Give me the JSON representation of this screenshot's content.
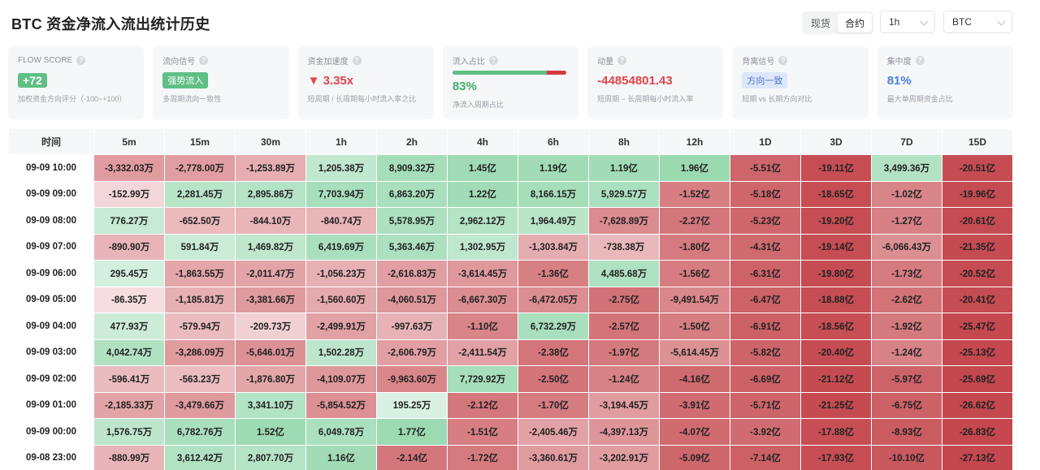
{
  "page": {
    "title": "BTC 资金净流入流出统计历史"
  },
  "controls": {
    "market_tabs": [
      "现货",
      "合约"
    ],
    "market_active": 1,
    "interval": "1h",
    "symbol": "BTC"
  },
  "cards": [
    {
      "label": "FLOW SCORE",
      "value": "+72",
      "sub": "加权资金方向评分（-100~+100）"
    },
    {
      "label": "流向信号",
      "value": "强势流入",
      "sub": "多周期流向一致性"
    },
    {
      "label": "资金加速度",
      "value": "▼ 3.35x",
      "sub": "短周期 / 长周期每小时流入率之比"
    },
    {
      "label": "流入占比",
      "value": "83%",
      "inflow_fraction": 0.83,
      "sub": "净流入周期占比"
    },
    {
      "label": "动量",
      "value": "-44854801.43",
      "sub": "短周期 − 长周期每小时流入率"
    },
    {
      "label": "背离信号",
      "value": "方向一致",
      "sub": "短期 vs 长期方向对比"
    },
    {
      "label": "集中度",
      "value": "81%",
      "sub": "最大单周期资金占比"
    }
  ],
  "table": {
    "columns": [
      "时间",
      "5m",
      "15m",
      "30m",
      "1h",
      "2h",
      "4h",
      "6h",
      "8h",
      "12h",
      "1D",
      "3D",
      "7D",
      "15D"
    ],
    "rows": [
      {
        "time": "09-09 10:00",
        "cells": [
          "-3,332.03万",
          "-2,778.00万",
          "-1,253.89万",
          "1,205.38万",
          "8,909.32万",
          "1.45亿",
          "1.19亿",
          "1.19亿",
          "1.96亿",
          "-5.51亿",
          "-19.11亿",
          "3,499.36万",
          "-20.51亿"
        ]
      },
      {
        "time": "09-09 09:00",
        "cells": [
          "-152.99万",
          "2,281.45万",
          "2,895.86万",
          "7,703.94万",
          "6,863.20万",
          "1.22亿",
          "8,166.15万",
          "5,929.57万",
          "-1.52亿",
          "-5.18亿",
          "-18.65亿",
          "-1.02亿",
          "-19.96亿"
        ]
      },
      {
        "time": "09-09 08:00",
        "cells": [
          "776.27万",
          "-652.50万",
          "-844.10万",
          "-840.74万",
          "5,578.95万",
          "2,962.12万",
          "1,964.49万",
          "-7,628.89万",
          "-2.27亿",
          "-5.23亿",
          "-19.20亿",
          "-1.27亿",
          "-20.61亿"
        ]
      },
      {
        "time": "09-09 07:00",
        "cells": [
          "-890.90万",
          "591.84万",
          "1,469.82万",
          "6,419.69万",
          "5,363.46万",
          "1,302.95万",
          "-1,303.84万",
          "-738.38万",
          "-1.80亿",
          "-4.31亿",
          "-19.14亿",
          "-6,066.43万",
          "-21.35亿"
        ]
      },
      {
        "time": "09-09 06:00",
        "cells": [
          "295.45万",
          "-1,863.55万",
          "-2,011.47万",
          "-1,056.23万",
          "-2,616.83万",
          "-3,614.45万",
          "-1.36亿",
          "4,485.68万",
          "-1.56亿",
          "-6.31亿",
          "-19.80亿",
          "-1.73亿",
          "-20.52亿"
        ]
      },
      {
        "time": "09-09 05:00",
        "cells": [
          "-86.35万",
          "-1,185.81万",
          "-3,381.66万",
          "-1,560.60万",
          "-4,060.51万",
          "-6,667.30万",
          "-6,472.05万",
          "-2.75亿",
          "-9,491.54万",
          "-6.47亿",
          "-18.88亿",
          "-2.62亿",
          "-20.41亿"
        ]
      },
      {
        "time": "09-09 04:00",
        "cells": [
          "477.93万",
          "-579.94万",
          "-209.73万",
          "-2,499.91万",
          "-997.63万",
          "-1.10亿",
          "6,732.29万",
          "-2.57亿",
          "-1.50亿",
          "-6.91亿",
          "-18.56亿",
          "-1.92亿",
          "-25.47亿"
        ]
      },
      {
        "time": "09-09 03:00",
        "cells": [
          "4,042.74万",
          "-3,286.09万",
          "-5,646.01万",
          "1,502.28万",
          "-2,606.79万",
          "-2,411.54万",
          "-2.38亿",
          "-1.97亿",
          "-5,614.45万",
          "-5.82亿",
          "-20.40亿",
          "-1.24亿",
          "-25.13亿"
        ]
      },
      {
        "time": "09-09 02:00",
        "cells": [
          "-596.41万",
          "-563.23万",
          "-1,876.80万",
          "-4,109.07万",
          "-9,963.60万",
          "7,729.92万",
          "-2.50亿",
          "-1.24亿",
          "-4.16亿",
          "-6.69亿",
          "-21.12亿",
          "-5.97亿",
          "-25.69亿"
        ]
      },
      {
        "time": "09-09 01:00",
        "cells": [
          "-2,185.33万",
          "-3,479.66万",
          "3,341.10万",
          "-5,854.52万",
          "195.25万",
          "-2.12亿",
          "-1.70亿",
          "-3,194.45万",
          "-3.91亿",
          "-5.71亿",
          "-21.25亿",
          "-6.75亿",
          "-26.62亿"
        ]
      },
      {
        "time": "09-09 00:00",
        "cells": [
          "1,576.75万",
          "6,782.76万",
          "1.52亿",
          "6,049.78万",
          "1.77亿",
          "-1.51亿",
          "-2,405.46万",
          "-4,397.13万",
          "-4.07亿",
          "-3.92亿",
          "-17.88亿",
          "-8.93亿",
          "-26.83亿"
        ]
      },
      {
        "time": "09-08 23:00",
        "cells": [
          "-880.99万",
          "3,612.42万",
          "2,807.70万",
          "1.16亿",
          "-2.14亿",
          "-1.72亿",
          "-3,360.61万",
          "-3,202.91万",
          "-5.09亿",
          "-7.14亿",
          "-17.93亿",
          "-10.10亿",
          "-27.13亿"
        ]
      }
    ]
  }
}
